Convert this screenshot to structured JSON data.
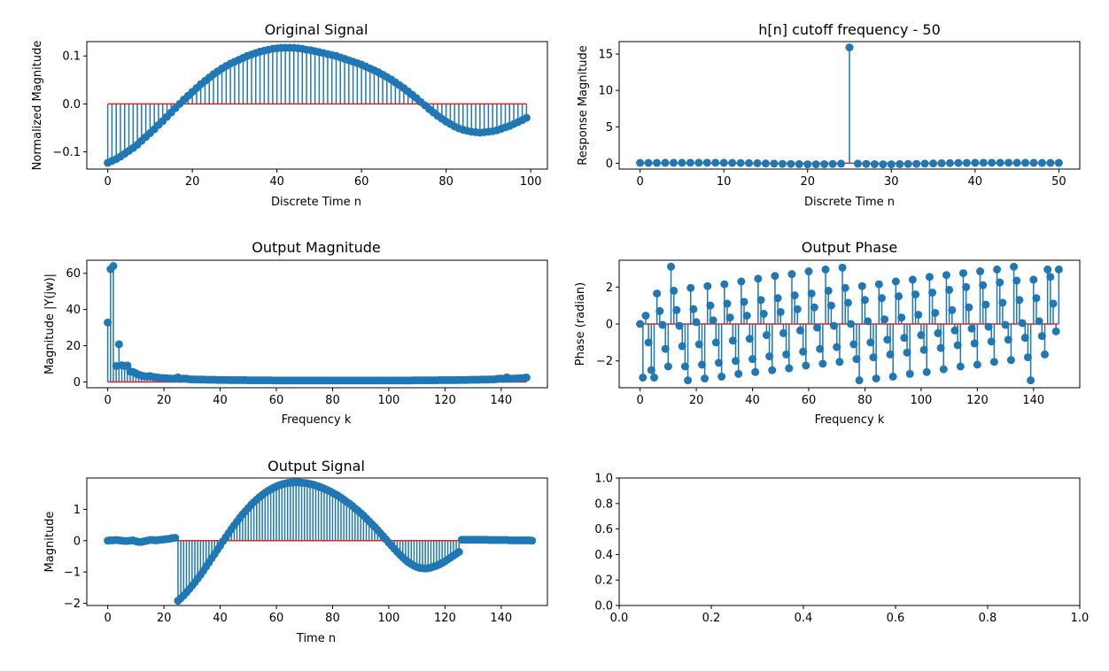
{
  "figure": {
    "background": "#ffffff",
    "stem_color": "#1f77b4",
    "baseline_color": "#d62728"
  },
  "chart_data": [
    {
      "id": "original",
      "type": "stem",
      "title": "Original Signal",
      "xlabel": "Discrete Time n",
      "ylabel": "Normalized Magnitude",
      "xlim": [
        -4.95,
        103.95
      ],
      "ylim": [
        -0.136,
        0.13
      ],
      "xticks": [
        0,
        20,
        40,
        60,
        80,
        100
      ],
      "yticks": [
        -0.1,
        0.0,
        0.1
      ],
      "xtick_labels": [
        "0",
        "20",
        "40",
        "60",
        "80",
        "100"
      ],
      "ytick_labels": [
        "−0.1",
        "0.0",
        "0.1"
      ],
      "series": [
        {
          "x_start": 0,
          "x_step": 1,
          "values": [
            -0.123,
            -0.119,
            -0.115,
            -0.11,
            -0.104,
            -0.098,
            -0.092,
            -0.085,
            -0.077,
            -0.069,
            -0.061,
            -0.053,
            -0.044,
            -0.036,
            -0.027,
            -0.018,
            -0.009,
            0.0,
            0.009,
            0.017,
            0.025,
            0.033,
            0.041,
            0.048,
            0.055,
            0.062,
            0.068,
            0.074,
            0.079,
            0.084,
            0.088,
            0.092,
            0.096,
            0.1,
            0.103,
            0.106,
            0.109,
            0.111,
            0.113,
            0.115,
            0.116,
            0.117,
            0.117,
            0.117,
            0.117,
            0.116,
            0.115,
            0.113,
            0.112,
            0.11,
            0.108,
            0.106,
            0.104,
            0.102,
            0.1,
            0.097,
            0.094,
            0.091,
            0.088,
            0.085,
            0.082,
            0.078,
            0.074,
            0.07,
            0.066,
            0.061,
            0.056,
            0.051,
            0.045,
            0.039,
            0.033,
            0.026,
            0.019,
            0.012,
            0.004,
            -0.003,
            -0.011,
            -0.018,
            -0.025,
            -0.031,
            -0.037,
            -0.042,
            -0.047,
            -0.051,
            -0.054,
            -0.056,
            -0.058,
            -0.059,
            -0.06,
            -0.059,
            -0.058,
            -0.057,
            -0.055,
            -0.052,
            -0.049,
            -0.046,
            -0.042,
            -0.038,
            -0.034,
            -0.029
          ]
        }
      ]
    },
    {
      "id": "hn",
      "type": "stem",
      "title": "h[n] cutoff frequency - 50",
      "xlabel": "Discrete Time n",
      "ylabel": "Response Magnitude",
      "xlim": [
        -2.5,
        52.5
      ],
      "ylim": [
        -0.8,
        16.7
      ],
      "xticks": [
        0,
        10,
        20,
        30,
        40,
        50
      ],
      "yticks": [
        0,
        5,
        10,
        15
      ],
      "xtick_labels": [
        "0",
        "10",
        "20",
        "30",
        "40",
        "50"
      ],
      "ytick_labels": [
        "0",
        "5",
        "10",
        "15"
      ],
      "series": [
        {
          "x_start": 0,
          "x_step": 1,
          "values": [
            0.05,
            0.05,
            0.05,
            0.06,
            0.06,
            0.06,
            0.07,
            0.07,
            0.07,
            0.07,
            0.06,
            0.05,
            0.04,
            0.02,
            0.0,
            -0.03,
            -0.05,
            -0.08,
            -0.1,
            -0.12,
            -0.14,
            -0.14,
            -0.13,
            -0.1,
            -0.06,
            15.9,
            -0.06,
            -0.1,
            -0.13,
            -0.14,
            -0.14,
            -0.12,
            -0.1,
            -0.08,
            -0.05,
            -0.03,
            0.0,
            0.02,
            0.04,
            0.05,
            0.06,
            0.07,
            0.07,
            0.07,
            0.07,
            0.06,
            0.06,
            0.06,
            0.05,
            0.05,
            0.05
          ]
        }
      ]
    },
    {
      "id": "outmag",
      "type": "stem",
      "title": "Output Magnitude",
      "xlabel": "Frequency k",
      "ylabel": "Magnitude |Y(jw)|",
      "xlim": [
        -7.45,
        156.45
      ],
      "ylim": [
        -3.2,
        67.2
      ],
      "xticks": [
        0,
        20,
        40,
        60,
        80,
        100,
        120,
        140
      ],
      "yticks": [
        0,
        20,
        40,
        60
      ],
      "xtick_labels": [
        "0",
        "20",
        "40",
        "60",
        "80",
        "100",
        "120",
        "140"
      ],
      "ytick_labels": [
        "0",
        "20",
        "40",
        "60"
      ],
      "series": [
        {
          "x_start": 0,
          "x_step": 1,
          "values": [
            32.8,
            62.3,
            64.0,
            8.8,
            20.8,
            9.2,
            8.8,
            9.1,
            5.8,
            5.5,
            4.8,
            4.0,
            3.5,
            3.2,
            3.0,
            3.3,
            2.8,
            2.6,
            2.4,
            2.2,
            2.1,
            2.0,
            1.9,
            1.8,
            1.8,
            2.5,
            1.7,
            1.8,
            1.8,
            1.5,
            1.4,
            1.4,
            1.3,
            1.3,
            1.3,
            1.2,
            1.2,
            1.2,
            1.2,
            1.1,
            1.1,
            1.1,
            1.1,
            1.0,
            1.0,
            1.0,
            1.0,
            1.0,
            1.0,
            1.0,
            0.9,
            0.9,
            0.9,
            0.9,
            0.9,
            0.9,
            0.9,
            0.9,
            0.9,
            0.8,
            0.8,
            0.8,
            0.8,
            0.8,
            0.8,
            0.8,
            0.8,
            0.8,
            0.8,
            0.8,
            0.8,
            0.8,
            0.8,
            0.8,
            0.8,
            0.8,
            0.8,
            0.8,
            0.8,
            0.8,
            0.8,
            0.8,
            0.8,
            0.8,
            0.8,
            0.8,
            0.8,
            0.8,
            0.8,
            0.8,
            0.8,
            0.8,
            0.8,
            0.8,
            0.8,
            0.8,
            0.8,
            0.8,
            0.8,
            0.8,
            0.8,
            0.8,
            0.8,
            0.8,
            0.8,
            0.8,
            0.8,
            0.8,
            0.8,
            0.9,
            0.9,
            0.9,
            0.9,
            0.9,
            0.9,
            0.9,
            0.9,
            0.9,
            1.0,
            1.0,
            1.0,
            1.0,
            1.0,
            1.0,
            1.0,
            1.1,
            1.1,
            1.1,
            1.1,
            1.2,
            1.2,
            1.2,
            1.2,
            1.3,
            1.3,
            1.3,
            1.4,
            1.4,
            1.5,
            1.8,
            1.8,
            1.7,
            2.5,
            1.8,
            1.8,
            1.9,
            2.0,
            2.1,
            2.2,
            2.4
          ]
        }
      ]
    },
    {
      "id": "outphase",
      "type": "stem",
      "title": "Output Phase",
      "xlabel": "Frequency k",
      "ylabel": "Phase (radian)",
      "xlim": [
        -7.45,
        156.45
      ],
      "ylim": [
        -3.45,
        3.45
      ],
      "xticks": [
        0,
        20,
        40,
        60,
        80,
        100,
        120,
        140
      ],
      "yticks": [
        -2,
        0,
        2
      ],
      "xtick_labels": [
        "0",
        "20",
        "40",
        "60",
        "80",
        "100",
        "120",
        "140"
      ],
      "ytick_labels": [
        "−2",
        "0",
        "2"
      ],
      "series": [
        {
          "x_start": 0,
          "x_step": 1,
          "values": [
            0.0,
            -2.9,
            0.45,
            -1.0,
            -2.5,
            -2.9,
            1.65,
            0.7,
            -0.05,
            -1.35,
            -2.3,
            3.1,
            1.8,
            0.75,
            -0.1,
            -1.2,
            -2.3,
            -3.05,
            1.95,
            0.8,
            0.1,
            -1.1,
            -2.2,
            -2.95,
            2.05,
            1.0,
            0.2,
            -1.0,
            -2.1,
            -2.85,
            2.15,
            1.1,
            0.35,
            -0.9,
            -2.0,
            -2.7,
            2.3,
            1.2,
            0.45,
            -0.8,
            -1.9,
            -2.6,
            2.45,
            1.3,
            0.55,
            -0.6,
            -1.75,
            -2.5,
            2.6,
            1.4,
            0.65,
            -0.5,
            -1.65,
            -2.4,
            2.7,
            1.55,
            0.8,
            -0.35,
            -1.5,
            -2.25,
            2.85,
            1.65,
            0.9,
            -0.2,
            -1.35,
            -2.15,
            2.95,
            1.8,
            1.0,
            -0.1,
            -1.25,
            -2.05,
            3.05,
            1.95,
            1.15,
            0.0,
            -1.1,
            -1.9,
            -3.05,
            2.05,
            1.3,
            0.15,
            -1.0,
            -1.8,
            -2.95,
            2.15,
            1.4,
            0.25,
            -0.85,
            -1.65,
            -2.85,
            2.3,
            1.5,
            0.35,
            -0.75,
            -1.55,
            -2.7,
            2.4,
            1.6,
            0.5,
            -0.6,
            -1.4,
            -2.6,
            2.55,
            1.7,
            0.6,
            -0.5,
            -1.3,
            -2.45,
            2.65,
            1.85,
            0.75,
            -0.35,
            -1.15,
            -2.3,
            2.75,
            2.0,
            0.9,
            -0.25,
            -1.05,
            -2.2,
            2.85,
            2.1,
            1.05,
            -0.15,
            -0.95,
            -2.05,
            2.95,
            2.25,
            1.15,
            -0.05,
            -0.85,
            -1.95,
            3.1,
            2.35,
            1.3,
            0.05,
            -0.75,
            -1.8,
            -3.05,
            2.4,
            1.4,
            0.15,
            -0.65,
            -1.65,
            2.95,
            2.55,
            1.1,
            -0.4,
            2.95
          ]
        }
      ]
    },
    {
      "id": "outsig",
      "type": "stem",
      "title": "Output Signal",
      "xlabel": "Time n",
      "ylabel": "Magnitude",
      "xlim": [
        -7.45,
        156.45
      ],
      "ylim": [
        -2.07,
        2.0
      ],
      "xticks": [
        0,
        20,
        40,
        60,
        80,
        100,
        120,
        140
      ],
      "yticks": [
        -2,
        -1,
        0,
        1
      ],
      "xtick_labels": [
        "0",
        "20",
        "40",
        "60",
        "80",
        "100",
        "120",
        "140"
      ],
      "ytick_labels": [
        "−2",
        "−1",
        "0",
        "1"
      ],
      "series": [
        {
          "x_start": 0,
          "x_step": 1,
          "values": [
            0.0,
            0.01,
            0.01,
            0.02,
            0.01,
            0.0,
            -0.01,
            -0.01,
            0.0,
            0.01,
            -0.02,
            -0.04,
            -0.04,
            -0.02,
            0.0,
            0.02,
            0.02,
            0.01,
            0.02,
            0.03,
            0.04,
            0.05,
            0.06,
            0.08,
            0.09,
            -1.92,
            -1.84,
            -1.75,
            -1.65,
            -1.55,
            -1.44,
            -1.33,
            -1.21,
            -1.09,
            -0.96,
            -0.83,
            -0.7,
            -0.56,
            -0.43,
            -0.29,
            -0.16,
            -0.02,
            0.11,
            0.24,
            0.37,
            0.49,
            0.61,
            0.73,
            0.84,
            0.94,
            1.04,
            1.14,
            1.23,
            1.31,
            1.39,
            1.46,
            1.53,
            1.59,
            1.64,
            1.69,
            1.73,
            1.77,
            1.8,
            1.82,
            1.84,
            1.85,
            1.86,
            1.86,
            1.86,
            1.85,
            1.84,
            1.83,
            1.81,
            1.79,
            1.76,
            1.73,
            1.7,
            1.66,
            1.62,
            1.58,
            1.53,
            1.48,
            1.43,
            1.37,
            1.31,
            1.24,
            1.18,
            1.11,
            1.03,
            0.96,
            0.88,
            0.8,
            0.71,
            0.62,
            0.53,
            0.44,
            0.34,
            0.24,
            0.14,
            0.04,
            -0.06,
            -0.16,
            -0.26,
            -0.36,
            -0.45,
            -0.54,
            -0.62,
            -0.69,
            -0.75,
            -0.8,
            -0.84,
            -0.87,
            -0.88,
            -0.89,
            -0.88,
            -0.86,
            -0.83,
            -0.8,
            -0.76,
            -0.71,
            -0.66,
            -0.6,
            -0.54,
            -0.48,
            -0.42,
            -0.36,
            0.03,
            0.03,
            0.03,
            0.03,
            0.03,
            0.03,
            0.03,
            0.03,
            0.03,
            0.03,
            0.02,
            0.02,
            0.02,
            0.02,
            0.02,
            0.02,
            0.02,
            0.01,
            0.01,
            0.01,
            0.01,
            0.01,
            0.01,
            0.01,
            0.01,
            0.0
          ]
        }
      ]
    },
    {
      "id": "empty",
      "type": "empty",
      "title": "",
      "xlabel": "",
      "ylabel": "",
      "xlim": [
        0,
        1
      ],
      "ylim": [
        0,
        1
      ],
      "xticks": [
        0,
        0.2,
        0.4,
        0.6,
        0.8,
        1.0
      ],
      "yticks": [
        0,
        0.2,
        0.4,
        0.6,
        0.8,
        1.0
      ],
      "xtick_labels": [
        "0.0",
        "0.2",
        "0.4",
        "0.6",
        "0.8",
        "1.0"
      ],
      "ytick_labels": [
        "0.0",
        "0.2",
        "0.4",
        "0.6",
        "0.8",
        "1.0"
      ],
      "series": []
    }
  ]
}
